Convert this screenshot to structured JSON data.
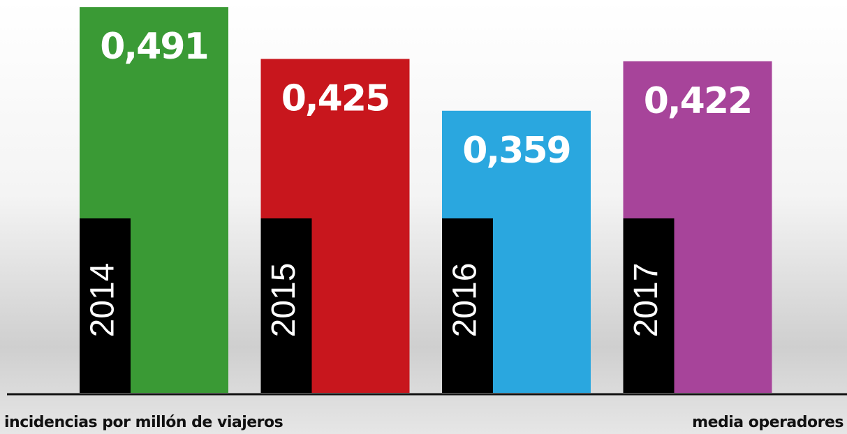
{
  "chart_data": {
    "type": "bar",
    "categories": [
      "2014",
      "2015",
      "2016",
      "2017"
    ],
    "values": [
      0.491,
      0.425,
      0.359,
      0.422
    ],
    "value_labels": [
      "0,491",
      "0,425",
      "0,359",
      "0,422"
    ],
    "colors": [
      "#3a9a35",
      "#c8161d",
      "#2aa7df",
      "#a7449a"
    ],
    "ylim": [
      0,
      0.5
    ],
    "annotations": [
      "incidencias por millón de viajeros",
      "media operadores"
    ]
  }
}
